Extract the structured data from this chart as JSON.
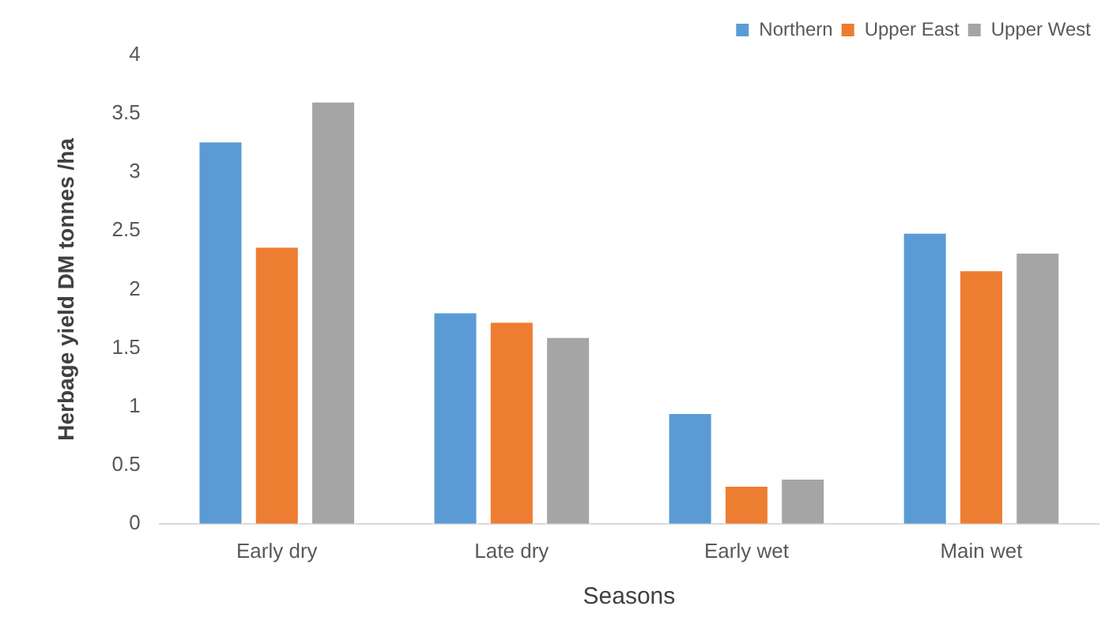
{
  "chart_data": {
    "type": "bar",
    "xlabel": "Seasons",
    "ylabel": "Herbage yield DM tonnes /ha",
    "categories": [
      "Early dry",
      "Late dry",
      "Early wet",
      "Main wet"
    ],
    "series": [
      {
        "name": "Northern",
        "color": "#5b9bd5",
        "values": [
          3.27,
          1.81,
          0.95,
          2.49
        ]
      },
      {
        "name": "Upper East",
        "color": "#ed7d31",
        "values": [
          2.37,
          1.73,
          0.33,
          2.17
        ]
      },
      {
        "name": "Upper West",
        "color": "#a5a5a5",
        "values": [
          3.61,
          1.6,
          0.39,
          2.32
        ]
      }
    ],
    "ylim": [
      0,
      4
    ],
    "yticks": [
      0,
      0.5,
      1,
      1.5,
      2,
      2.5,
      3,
      3.5,
      4
    ],
    "grid": false,
    "legend": "top right"
  }
}
